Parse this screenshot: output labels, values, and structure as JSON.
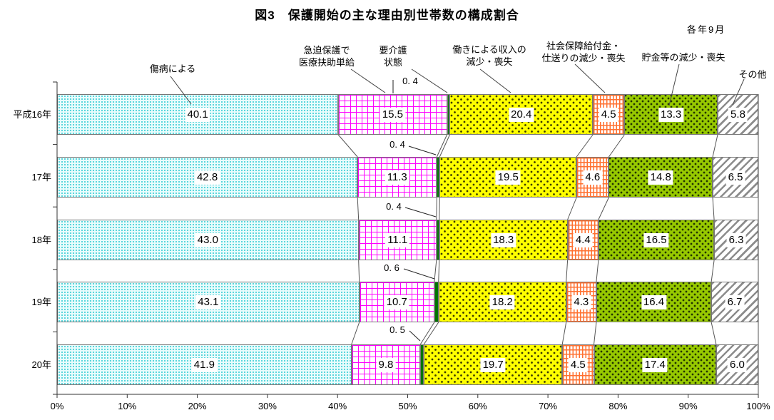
{
  "title": "図3　保護開始の主な理由別世帯数の構成割合",
  "note": "各年9月",
  "chart_data": {
    "type": "bar",
    "variant": "horizontal-percent-stacked",
    "unit": "%",
    "grid": false,
    "legend": "callout-labels-with-leader-lines",
    "categories": [
      "平成16年",
      "17年",
      "18年",
      "19年",
      "20年"
    ],
    "series": [
      {
        "name": "傷病による",
        "label_lines": [
          "傷病による"
        ],
        "pattern": "cyan-dots",
        "color": "#2CC9D2",
        "values": [
          40.1,
          42.8,
          43.0,
          43.1,
          41.9
        ]
      },
      {
        "name": "急迫保護で医療扶助単給",
        "label_lines": [
          "急迫保護で",
          "医療扶助単給"
        ],
        "pattern": "magenta-grid",
        "color": "#FF00FF",
        "values": [
          15.5,
          11.3,
          11.1,
          10.7,
          9.8
        ]
      },
      {
        "name": "要介護状態",
        "label_lines": [
          "要介護",
          "状態"
        ],
        "pattern": "solid-green",
        "color": "#007500",
        "values": [
          0.4,
          0.4,
          0.4,
          0.6,
          0.5
        ]
      },
      {
        "name": "働きによる収入の減少・喪失",
        "label_lines": [
          "働きによる収入の",
          "減少・喪失"
        ],
        "pattern": "yellow-dots",
        "color": "#FFFF00",
        "values": [
          20.4,
          19.5,
          18.3,
          18.2,
          19.7
        ]
      },
      {
        "name": "社会保障給付金・仕送りの減少・喪失",
        "label_lines": [
          "社会保障給付金・",
          "仕送りの減少・喪失"
        ],
        "pattern": "orange-brick",
        "color": "#FF7030",
        "values": [
          4.5,
          4.6,
          4.4,
          4.3,
          4.5
        ]
      },
      {
        "name": "貯金等の減少・喪失",
        "label_lines": [
          "貯金等の減少・喪失"
        ],
        "pattern": "green-specks",
        "color": "#97C900",
        "values": [
          13.3,
          14.8,
          16.5,
          16.4,
          17.4
        ]
      },
      {
        "name": "その他",
        "label_lines": [
          "その他"
        ],
        "pattern": "gray-stripes",
        "color": "#8C8C8C",
        "values": [
          5.8,
          6.5,
          6.3,
          6.7,
          6.0
        ]
      }
    ],
    "care_state_outside_labels": [
      "0. 4",
      "0. 4",
      "0. 4",
      "0. 6",
      "0. 5"
    ],
    "x_axis": {
      "min": 0,
      "max": 100,
      "tick_labels": [
        "0%",
        "10%",
        "20%",
        "30%",
        "40%",
        "50%",
        "60%",
        "70%",
        "80%",
        "90%",
        "100%"
      ]
    }
  }
}
